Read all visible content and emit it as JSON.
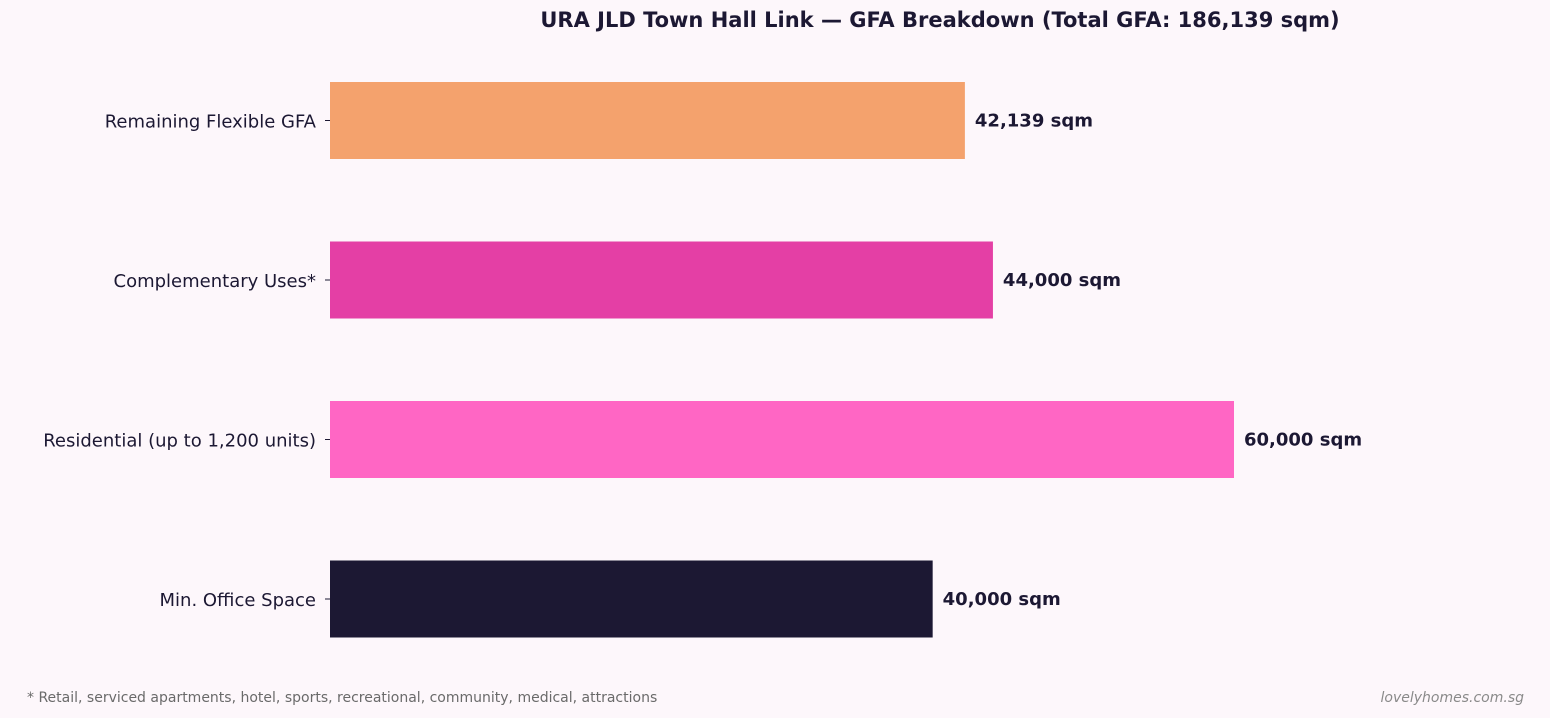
{
  "chart_data": {
    "type": "bar",
    "orientation": "horizontal",
    "title": "URA JLD Town Hall Link — GFA Breakdown (Total GFA: 186,139 sqm)",
    "xlabel": "",
    "ylabel": "",
    "unit": "sqm",
    "xlim": [
      0,
      66000
    ],
    "grid": false,
    "categories": [
      "Min. Office Space",
      "Residential (up to 1,200 units)",
      "Complementary Uses*",
      "Remaining Flexible GFA"
    ],
    "values": [
      40000,
      60000,
      44000,
      42139
    ],
    "value_labels": [
      "40,000 sqm",
      "60,000 sqm",
      "44,000 sqm",
      "42,139 sqm"
    ],
    "colors": [
      "#1c1833",
      "#ff66c4",
      "#e43fa5",
      "#f4a26d"
    ]
  },
  "footnote": "* Retail, serviced apartments, hotel, sports, recreational, community, medical, attractions",
  "watermark": "lovelyhomes.com.sg",
  "colors": {
    "background": "#fdf7fb",
    "text": "#1c1833"
  }
}
